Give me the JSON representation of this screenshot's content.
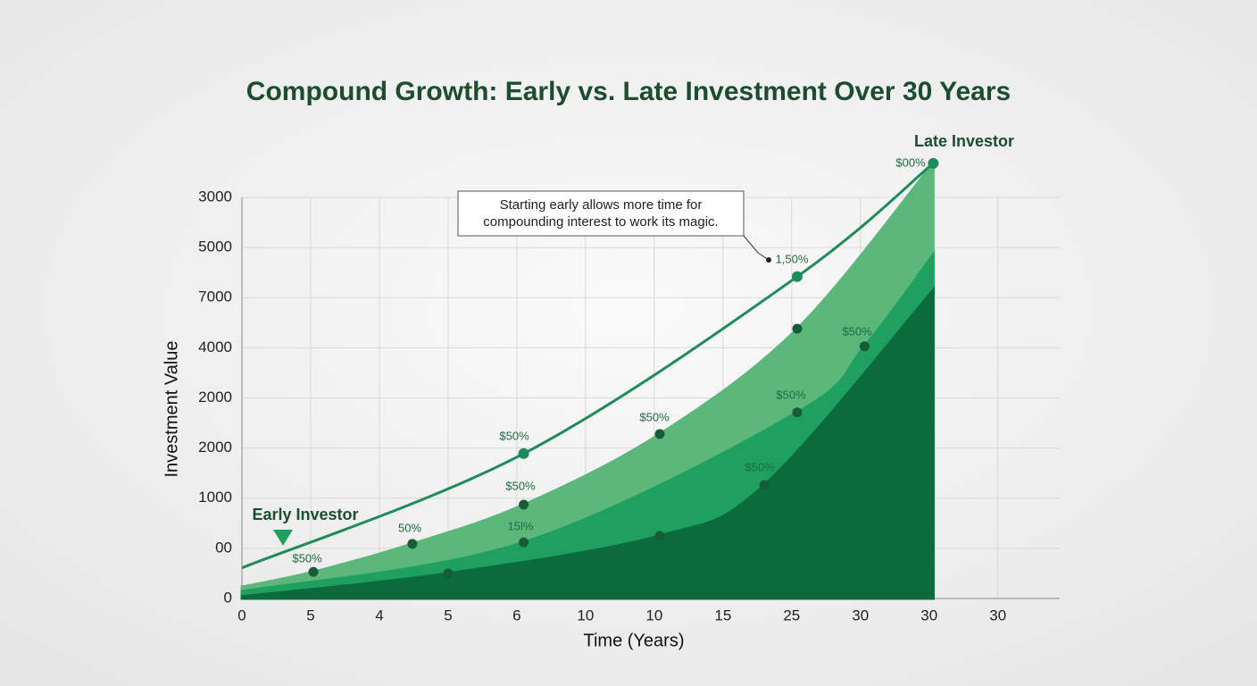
{
  "chart_data": {
    "type": "area",
    "title": "Compound Growth: Early vs. Late Investment Over 30 Years",
    "x_label": "Time (Years)",
    "y_label": "Investment Value",
    "xlim": [
      0,
      11.9
    ],
    "xticks": [
      {
        "value": 0,
        "label": "0"
      },
      {
        "value": 1,
        "label": "5"
      },
      {
        "value": 2,
        "label": "4"
      },
      {
        "value": 3,
        "label": "5"
      },
      {
        "value": 4,
        "label": "6"
      },
      {
        "value": 5,
        "label": "10"
      },
      {
        "value": 6,
        "label": "10"
      },
      {
        "value": 7,
        "label": "15"
      },
      {
        "value": 8,
        "label": "25"
      },
      {
        "value": 9,
        "label": "30"
      },
      {
        "value": 10,
        "label": "30"
      },
      {
        "value": 11,
        "label": "30"
      }
    ],
    "ylim": [
      0,
      8
    ],
    "yticks": [
      {
        "value": 0,
        "label": "0"
      },
      {
        "value": 1,
        "label": "00"
      },
      {
        "value": 2,
        "label": "1000"
      },
      {
        "value": 3,
        "label": "2000"
      },
      {
        "value": 4,
        "label": "2000"
      },
      {
        "value": 5,
        "label": "4000"
      },
      {
        "value": 6,
        "label": "7000"
      },
      {
        "value": 7,
        "label": "5000"
      },
      {
        "value": 8,
        "label": "3000"
      }
    ],
    "grid": true,
    "series": [
      {
        "name": "Late Investor",
        "kind": "line",
        "color": "#1e8c5a",
        "x": [
          0,
          4.1,
          8.08,
          10.06
        ],
        "values": [
          0.61,
          2.89,
          6.42,
          8.68
        ]
      },
      {
        "name": "Early Investor",
        "kind": "area",
        "color": "#5cb87a",
        "x": [
          0,
          1.04,
          2.48,
          4.1,
          6.08,
          8.08,
          10.06
        ],
        "values": [
          0.23,
          0.53,
          1.09,
          1.87,
          3.28,
          5.38,
          8.68
        ]
      },
      {
        "kind": "area",
        "color": "#1fa060",
        "x": [
          0,
          4.1,
          8.08,
          9.06,
          10.06
        ],
        "values": [
          0.14,
          1.12,
          3.71,
          5.03,
          6.86
        ]
      },
      {
        "kind": "area",
        "color": "#0b6b3d",
        "x": [
          0,
          3.0,
          6.08,
          7.6,
          10.06
        ],
        "values": [
          0.04,
          0.5,
          1.25,
          2.26,
          6.15
        ]
      }
    ],
    "annotations": [
      "$00%",
      "1,50%",
      "$50%",
      "$50%",
      "$50%",
      "$50%",
      "$50%",
      "15l%",
      "50%",
      "$50%",
      "$50%"
    ],
    "callout": [
      "Starting early allows more time for",
      "compounding interest to work its magic."
    ]
  }
}
